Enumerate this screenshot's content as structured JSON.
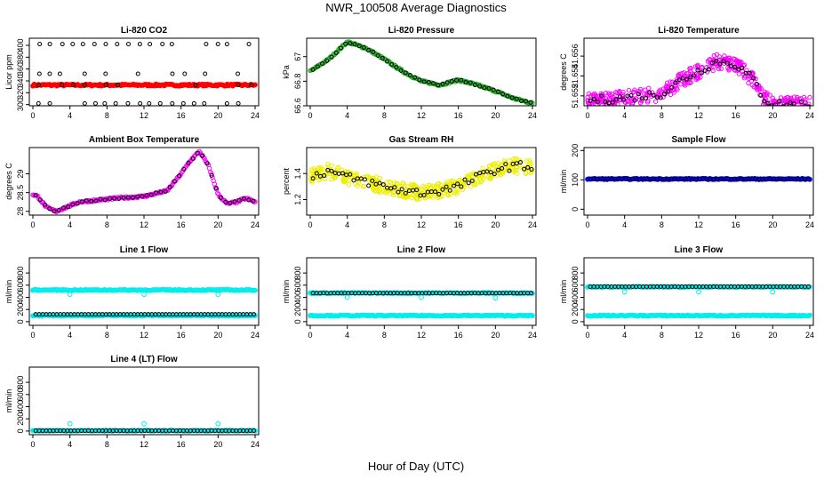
{
  "title": "NWR_100508  Average Diagnostics",
  "xlabel": "Hour of Day (UTC)",
  "colors": {
    "black": "#000000",
    "red": "#ff0000",
    "green": "#22aa22",
    "magenta": "#ff00ff",
    "yellow": "#eeee00",
    "blue": "#0000ff",
    "cyan": "#00eeee"
  },
  "chart_data": [
    {
      "type": "scatter",
      "title": "Li-820 CO2",
      "ylabel": "Licor ppm",
      "xlim": [
        0,
        24
      ],
      "xticks": [
        0,
        4,
        8,
        12,
        16,
        20,
        24
      ],
      "ylim": [
        298,
        412
      ],
      "yticks": [
        300,
        320,
        340,
        360,
        380,
        400
      ],
      "series": [
        {
          "name": "all",
          "color": "red",
          "style": "dense",
          "baseline": 333,
          "noise": 1.5
        },
        {
          "name": "hourly",
          "color": "black",
          "style": "sparse",
          "levels": [
            302,
            333,
            352,
            402
          ]
        }
      ]
    },
    {
      "type": "scatter",
      "title": "Li-820 Pressure",
      "ylabel": "kPa",
      "xlim": [
        0,
        24
      ],
      "xticks": [
        0,
        4,
        8,
        12,
        16,
        20,
        24
      ],
      "ylim": [
        66.6,
        67.15
      ],
      "yticks": [
        66.6,
        66.8,
        67.0
      ],
      "series": [
        {
          "name": "all",
          "color": "green",
          "style": "curve",
          "x": [
            0,
            2,
            4,
            6,
            8,
            10,
            12,
            14,
            16,
            18,
            20,
            22,
            24
          ],
          "y": [
            66.88,
            66.98,
            67.12,
            67.07,
            66.98,
            66.88,
            66.8,
            66.77,
            66.81,
            66.77,
            66.72,
            66.66,
            66.62
          ]
        },
        {
          "name": "hourly",
          "color": "black",
          "style": "curve-sparse"
        }
      ]
    },
    {
      "type": "scatter",
      "title": "Li-820 Temperature",
      "ylabel": "degrees C",
      "xlim": [
        0,
        24
      ],
      "xticks": [
        0,
        4,
        8,
        12,
        16,
        20,
        24
      ],
      "ylim": [
        51.651,
        51.6578
      ],
      "yticks": [
        51.652,
        51.654,
        51.656
      ],
      "series": [
        {
          "name": "all",
          "color": "magenta",
          "style": "cloud",
          "x": [
            0,
            4,
            8,
            10,
            12,
            14,
            16,
            18,
            19,
            20,
            24
          ],
          "y": [
            51.6515,
            51.6518,
            51.6522,
            51.6535,
            51.6545,
            51.6555,
            51.6552,
            51.6535,
            51.6518,
            51.6512,
            51.6511
          ]
        },
        {
          "name": "hourly",
          "color": "black",
          "style": "cloud-sparse"
        }
      ]
    },
    {
      "type": "scatter",
      "title": "Ambient Box Temperature",
      "ylabel": "degrees C",
      "xlim": [
        0,
        24
      ],
      "xticks": [
        0,
        4,
        8,
        12,
        16,
        20,
        24
      ],
      "ylim": [
        27.9,
        29.7
      ],
      "yticks": [
        28.0,
        28.5,
        29.0
      ],
      "series": [
        {
          "name": "all",
          "color": "magenta",
          "style": "curve",
          "x": [
            0,
            0.5,
            1.5,
            2.5,
            3.5,
            5,
            7,
            9,
            12,
            14.5,
            16,
            17,
            18,
            19,
            20,
            21,
            22,
            23,
            24
          ],
          "y": [
            28.45,
            28.4,
            28.1,
            28.0,
            28.1,
            28.25,
            28.3,
            28.35,
            28.4,
            28.55,
            29.0,
            29.35,
            29.6,
            29.2,
            28.45,
            28.2,
            28.25,
            28.35,
            28.25
          ]
        },
        {
          "name": "hourly",
          "color": "black",
          "style": "curve-sparse"
        }
      ]
    },
    {
      "type": "scatter",
      "title": "Gas Stream RH",
      "ylabel": "percent",
      "xlim": [
        0,
        24
      ],
      "xticks": [
        0,
        4,
        8,
        12,
        16,
        20,
        24
      ],
      "ylim": [
        1.08,
        1.6
      ],
      "yticks": [
        1.2,
        1.4
      ],
      "series": [
        {
          "name": "all",
          "color": "yellow",
          "style": "cloud",
          "x": [
            0,
            2,
            4,
            6,
            8,
            10,
            12,
            14,
            16,
            18,
            20,
            22,
            24
          ],
          "y": [
            1.38,
            1.42,
            1.37,
            1.34,
            1.3,
            1.27,
            1.25,
            1.27,
            1.3,
            1.37,
            1.43,
            1.46,
            1.45
          ]
        },
        {
          "name": "hourly",
          "color": "black",
          "style": "cloud-sparse"
        }
      ]
    },
    {
      "type": "scatter",
      "title": "Sample Flow",
      "ylabel": "ml/min",
      "xlim": [
        0,
        24
      ],
      "xticks": [
        0,
        4,
        8,
        12,
        16,
        20,
        24
      ],
      "ylim": [
        -20,
        210
      ],
      "yticks": [
        0,
        100,
        200
      ],
      "series": [
        {
          "name": "all",
          "color": "blue",
          "style": "flat",
          "level": 103
        },
        {
          "name": "hourly",
          "color": "black",
          "style": "flat-sparse",
          "level": 103
        }
      ]
    },
    {
      "type": "scatter",
      "title": "Line 1 Flow",
      "ylabel": "ml/min",
      "xlim": [
        0,
        24
      ],
      "xticks": [
        0,
        4,
        8,
        12,
        16,
        20,
        24
      ],
      "ylim": [
        -60,
        1050
      ],
      "yticks": [
        0,
        200,
        400,
        600,
        800
      ],
      "series": [
        {
          "name": "all-high",
          "color": "cyan",
          "style": "flat",
          "level": 520
        },
        {
          "name": "all-low",
          "color": "cyan",
          "style": "flat",
          "level": 100
        },
        {
          "name": "hourly",
          "color": "black",
          "style": "flat-sparse",
          "level": 120
        },
        {
          "name": "spikes",
          "color": "cyan",
          "style": "spikes",
          "x": [
            4,
            12,
            20
          ],
          "y": [
            450,
            450,
            450
          ]
        }
      ]
    },
    {
      "type": "scatter",
      "title": "Line 2 Flow",
      "ylabel": "ml/min",
      "xlim": [
        0,
        24
      ],
      "xticks": [
        0,
        4,
        8,
        12,
        16,
        20,
        24
      ],
      "ylim": [
        -60,
        1050
      ],
      "yticks": [
        0,
        200,
        400,
        600,
        800
      ],
      "series": [
        {
          "name": "all-high",
          "color": "cyan",
          "style": "flat",
          "level": 470
        },
        {
          "name": "all-low",
          "color": "cyan",
          "style": "flat",
          "level": 100
        },
        {
          "name": "hourly",
          "color": "black",
          "style": "flat-sparse",
          "level": 470
        },
        {
          "name": "spikes",
          "color": "cyan",
          "style": "spikes",
          "x": [
            4,
            12,
            20
          ],
          "y": [
            400,
            400,
            390
          ]
        }
      ]
    },
    {
      "type": "scatter",
      "title": "Line 3 Flow",
      "ylabel": "ml/min",
      "xlim": [
        0,
        24
      ],
      "xticks": [
        0,
        4,
        8,
        12,
        16,
        20,
        24
      ],
      "ylim": [
        -60,
        1050
      ],
      "yticks": [
        0,
        200,
        400,
        600,
        800
      ],
      "series": [
        {
          "name": "all-high",
          "color": "cyan",
          "style": "flat",
          "level": 570
        },
        {
          "name": "all-low",
          "color": "cyan",
          "style": "flat",
          "level": 100
        },
        {
          "name": "hourly",
          "color": "black",
          "style": "flat-sparse",
          "level": 575
        },
        {
          "name": "spikes",
          "color": "cyan",
          "style": "spikes",
          "x": [
            4,
            12,
            20
          ],
          "y": [
            490,
            490,
            490
          ]
        }
      ]
    },
    {
      "type": "scatter",
      "title": "Line 4 (LT) Flow",
      "ylabel": "ml/min",
      "xlim": [
        0,
        24
      ],
      "xticks": [
        0,
        4,
        8,
        12,
        16,
        20,
        24
      ],
      "ylim": [
        -60,
        1050
      ],
      "yticks": [
        0,
        200,
        400,
        600,
        800
      ],
      "series": [
        {
          "name": "all",
          "color": "cyan",
          "style": "flat",
          "level": 5
        },
        {
          "name": "hourly",
          "color": "black",
          "style": "flat-sparse",
          "level": 5
        },
        {
          "name": "spikes",
          "color": "cyan",
          "style": "spikes",
          "x": [
            4,
            12,
            20
          ],
          "y": [
            120,
            120,
            120
          ]
        }
      ]
    }
  ]
}
